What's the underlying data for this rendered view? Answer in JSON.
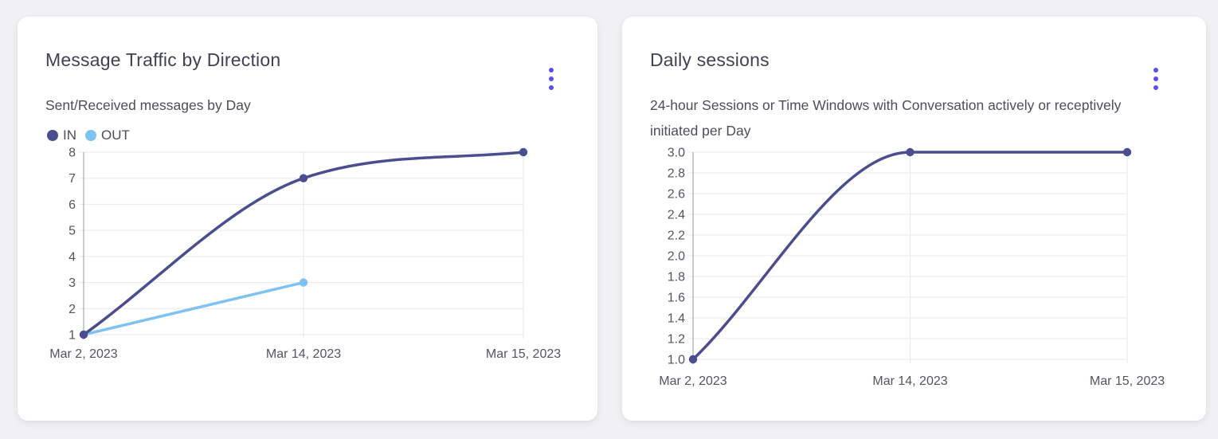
{
  "page": {
    "background_color": "#F1F1F4"
  },
  "accent_color": "#5B4FF0",
  "cards": [
    {
      "title": "Message Traffic by Direction",
      "subtitle": "Sent/Received messages by Day",
      "menu_icon": "kebab-menu"
    },
    {
      "title": "Daily sessions",
      "subtitle": "24-hour Sessions or Time Windows with Conversation actively or receptively initiated per Day",
      "menu_icon": "kebab-menu"
    }
  ],
  "chart_data": [
    {
      "type": "line",
      "title": "Message Traffic by Direction",
      "subtitle": "Sent/Received messages by Day",
      "categories": [
        "Mar 2, 2023",
        "Mar 14, 2023",
        "Mar 15, 2023"
      ],
      "series": [
        {
          "name": "IN",
          "color": "#4A4E8F",
          "values": [
            1,
            7,
            8
          ]
        },
        {
          "name": "OUT",
          "color": "#7EC2F2",
          "values": [
            1,
            3,
            null
          ]
        }
      ],
      "xlabel": "",
      "ylabel": "",
      "ylim": [
        1,
        8
      ],
      "yticks": [
        "1",
        "2",
        "3",
        "4",
        "5",
        "6",
        "7",
        "8"
      ],
      "grid": true,
      "curve": "monotone",
      "legend_position": "top-left"
    },
    {
      "type": "line",
      "title": "Daily sessions",
      "subtitle": "24-hour Sessions or Time Windows with Conversation actively or receptively initiated per Day",
      "categories": [
        "Mar 2, 2023",
        "Mar 14, 2023",
        "Mar 15, 2023"
      ],
      "series": [
        {
          "name": "Daily sessions",
          "color": "#4A4E8F",
          "values": [
            1,
            3,
            3
          ]
        }
      ],
      "xlabel": "",
      "ylabel": "",
      "ylim": [
        1,
        3
      ],
      "yticks": [
        "1.0",
        "1.2",
        "1.4",
        "1.6",
        "1.8",
        "2.0",
        "2.2",
        "2.4",
        "2.6",
        "2.8",
        "3.0"
      ],
      "grid": true,
      "curve": "monotone",
      "legend_position": "none"
    }
  ]
}
